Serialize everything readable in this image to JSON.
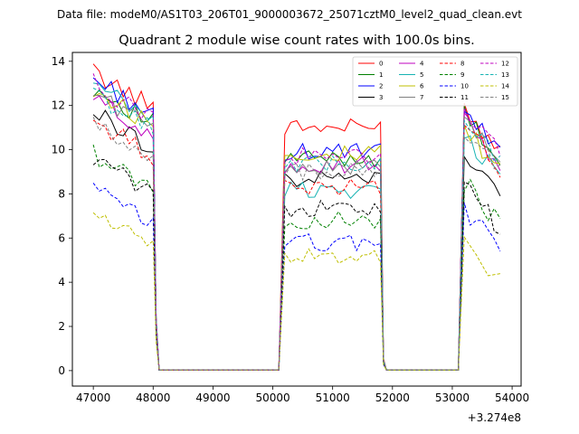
{
  "chart_data": {
    "type": "line",
    "suptitle": "Data file: modeM0/AS1T03_206T01_9000003672_25071cztM0_level2_quad_clean.evt",
    "title": "Quadrant 2 module wise count rates with 100.0s bins.",
    "xlabel": "",
    "ylabel": "",
    "x_offset_label": "+3.274e8",
    "xlim": [
      46650,
      54150
    ],
    "ylim": [
      -0.7,
      14.4
    ],
    "x_ticks": [
      47000,
      48000,
      49000,
      50000,
      51000,
      52000,
      53000,
      54000
    ],
    "x_tick_labels": [
      "47000",
      "48000",
      "49000",
      "50000",
      "51000",
      "52000",
      "53000",
      "54000"
    ],
    "y_ticks": [
      0,
      2,
      4,
      6,
      8,
      10,
      12,
      14
    ],
    "y_tick_labels": [
      "0",
      "2",
      "4",
      "6",
      "8",
      "10",
      "12",
      "14"
    ],
    "legend_position": "top-right",
    "segments": [
      {
        "x_start": 47000,
        "x_end": 48000
      },
      {
        "x_start": 50100,
        "x_end": 51800
      },
      {
        "x_start": 53100,
        "x_end": 53800
      }
    ],
    "gap_ranges": [
      [
        48100,
        50100
      ],
      [
        51900,
        53100
      ]
    ],
    "series": [
      {
        "name": "0",
        "color": "#ff0000",
        "dash": "solid",
        "levels": [
          13.5,
          11.0,
          12.2
        ]
      },
      {
        "name": "1",
        "color": "#008000",
        "dash": "solid",
        "levels": [
          12.8,
          9.6,
          11.8
        ]
      },
      {
        "name": "2",
        "color": "#0000ff",
        "dash": "solid",
        "levels": [
          13.2,
          9.9,
          12.0
        ]
      },
      {
        "name": "3",
        "color": "#000000",
        "dash": "solid",
        "levels": [
          11.7,
          8.7,
          10.3
        ]
      },
      {
        "name": "4",
        "color": "#bf00bf",
        "dash": "solid",
        "levels": [
          12.3,
          9.3,
          11.5
        ]
      },
      {
        "name": "5",
        "color": "#17b3b3",
        "dash": "solid",
        "levels": [
          12.9,
          8.2,
          11.0
        ]
      },
      {
        "name": "6",
        "color": "#bfbf00",
        "dash": "solid",
        "levels": [
          12.7,
          9.8,
          11.2
        ]
      },
      {
        "name": "7",
        "color": "#808080",
        "dash": "solid",
        "levels": [
          12.6,
          9.2,
          11.6
        ]
      },
      {
        "name": "8",
        "color": "#ff0000",
        "dash": "dashed",
        "levels": [
          11.3,
          8.3,
          11.4
        ]
      },
      {
        "name": "9",
        "color": "#008000",
        "dash": "dashed",
        "levels": [
          9.8,
          6.8,
          8.8
        ]
      },
      {
        "name": "10",
        "color": "#0000ff",
        "dash": "dashed",
        "levels": [
          8.2,
          5.8,
          7.6
        ]
      },
      {
        "name": "11",
        "color": "#000000",
        "dash": "dashed",
        "levels": [
          9.6,
          7.3,
          8.6
        ]
      },
      {
        "name": "12",
        "color": "#bf00bf",
        "dash": "dashed",
        "levels": [
          13.0,
          9.7,
          11.9
        ]
      },
      {
        "name": "13",
        "color": "#17b3b3",
        "dash": "dashed",
        "levels": [
          12.5,
          9.4,
          11.7
        ]
      },
      {
        "name": "14",
        "color": "#bfbf00",
        "dash": "dashed",
        "levels": [
          7.2,
          5.2,
          6.1
        ]
      },
      {
        "name": "15",
        "color": "#808080",
        "dash": "dashed",
        "levels": [
          11.1,
          9.0,
          11.3
        ]
      }
    ]
  }
}
